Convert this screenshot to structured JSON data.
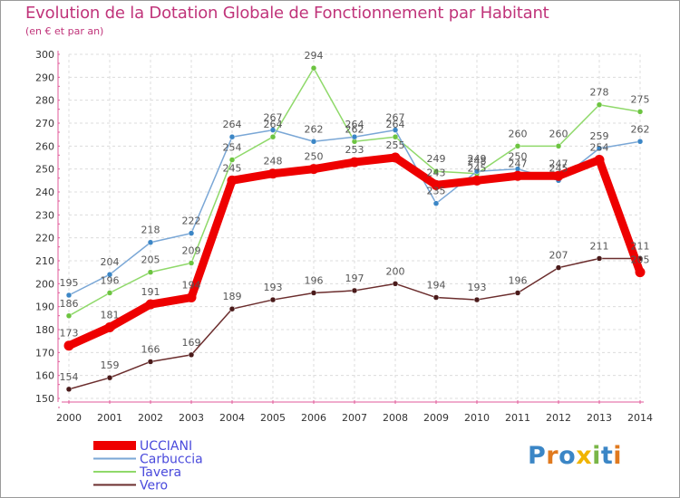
{
  "chart_data": {
    "type": "line",
    "title": "Evolution de la Dotation Globale de Fonctionnement par Habitant",
    "subtitle": "(en € et par an)",
    "xlabel": "",
    "ylabel": "",
    "ylim": [
      150,
      300
    ],
    "ystep": 10,
    "grid": true,
    "legend_position": "bottom-left",
    "categories": [
      "2000",
      "2001",
      "2002",
      "2003",
      "2004",
      "2005",
      "2006",
      "2007",
      "2008",
      "2009",
      "2010",
      "2011",
      "2012",
      "2013",
      "2014"
    ],
    "series": [
      {
        "name": "Vero",
        "color": "#6b2d2d",
        "marker": "#4a1a1a",
        "values": [
          154,
          159,
          166,
          169,
          189,
          193,
          196,
          197,
          200,
          194,
          193,
          196,
          207,
          211,
          211
        ]
      },
      {
        "name": "Tavera",
        "color": "#8fd96a",
        "marker": "#6cc440",
        "values": [
          186,
          196,
          205,
          209,
          254,
          264,
          294,
          262,
          264,
          249,
          248,
          260,
          260,
          278,
          275
        ]
      },
      {
        "name": "Carbuccia",
        "color": "#7aa7d6",
        "marker": "#3b86c6",
        "values": [
          195,
          204,
          218,
          222,
          264,
          267,
          262,
          264,
          267,
          235,
          249,
          250,
          245,
          259,
          262
        ]
      },
      {
        "name": "UCCIANI",
        "color": "#ee0000",
        "marker": "#ee0000",
        "values": [
          173,
          181,
          191,
          194,
          245,
          248,
          250,
          253,
          255,
          243,
          245,
          247,
          247,
          254,
          205
        ]
      }
    ]
  },
  "legend": {
    "items": [
      {
        "name": "UCCIANI",
        "color": "#ee0000"
      },
      {
        "name": "Carbuccia",
        "color": "#7aa7d6"
      },
      {
        "name": "Tavera",
        "color": "#8fd96a"
      },
      {
        "name": "Vero",
        "color": "#6b2d2d"
      }
    ],
    "label_color": "#4a4adc"
  },
  "logo": {
    "letters": [
      {
        "ch": "P",
        "color": "#3b86c6"
      },
      {
        "ch": "r",
        "color": "#e07a1f"
      },
      {
        "ch": "o",
        "color": "#3b86c6"
      },
      {
        "ch": "x",
        "color": "#f0b400"
      },
      {
        "ch": "i",
        "color": "#7ab648"
      },
      {
        "ch": "t",
        "color": "#3b86c6"
      },
      {
        "ch": "i",
        "color": "#e07a1f"
      }
    ]
  }
}
